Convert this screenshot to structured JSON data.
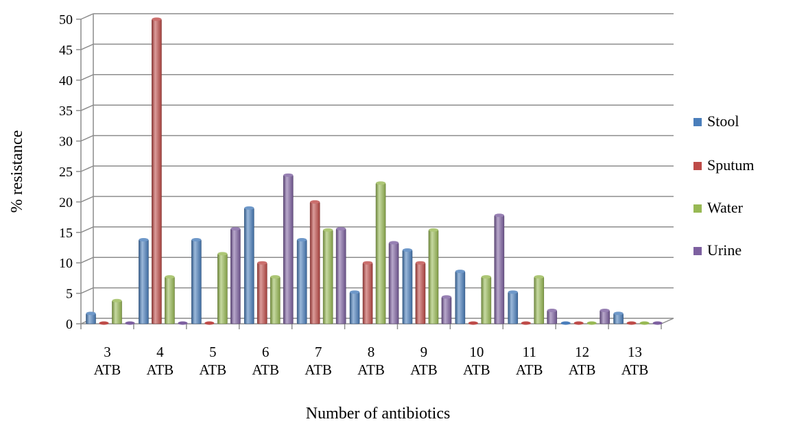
{
  "chart_data": {
    "type": "bar",
    "title": "",
    "xlabel": "Number of antibiotics",
    "ylabel": "% resistance",
    "ylim": [
      0,
      50
    ],
    "yticks": [
      0,
      5,
      10,
      15,
      20,
      25,
      30,
      35,
      40,
      45,
      50
    ],
    "grid": true,
    "legend_position": "right",
    "categories": [
      [
        "3",
        "ATB"
      ],
      [
        "4",
        "ATB"
      ],
      [
        "5",
        "ATB"
      ],
      [
        "6",
        "ATB"
      ],
      [
        "7",
        "ATB"
      ],
      [
        "8",
        "ATB"
      ],
      [
        "9",
        "ATB"
      ],
      [
        "10",
        "ATB"
      ],
      [
        "11",
        "ATB"
      ],
      [
        "12",
        "ATB"
      ],
      [
        "13",
        "ATB"
      ]
    ],
    "series": [
      {
        "name": "Stool",
        "color": "#4a7ebb",
        "values": [
          1.7,
          13.8,
          13.8,
          19.0,
          13.8,
          5.2,
          12.1,
          8.6,
          5.2,
          0,
          1.7
        ]
      },
      {
        "name": "Sputum",
        "color": "#be4b48",
        "values": [
          0,
          50,
          0,
          10,
          20,
          10,
          10,
          0,
          0,
          0,
          0
        ]
      },
      {
        "name": "Water",
        "color": "#98b954",
        "values": [
          3.8,
          7.7,
          11.5,
          7.7,
          15.4,
          23.1,
          15.4,
          7.7,
          7.7,
          0,
          0
        ]
      },
      {
        "name": "Urine",
        "color": "#7d60a0",
        "values": [
          0,
          0,
          15.6,
          24.4,
          15.6,
          13.3,
          4.4,
          17.8,
          2.2,
          2.2,
          0
        ]
      }
    ]
  }
}
